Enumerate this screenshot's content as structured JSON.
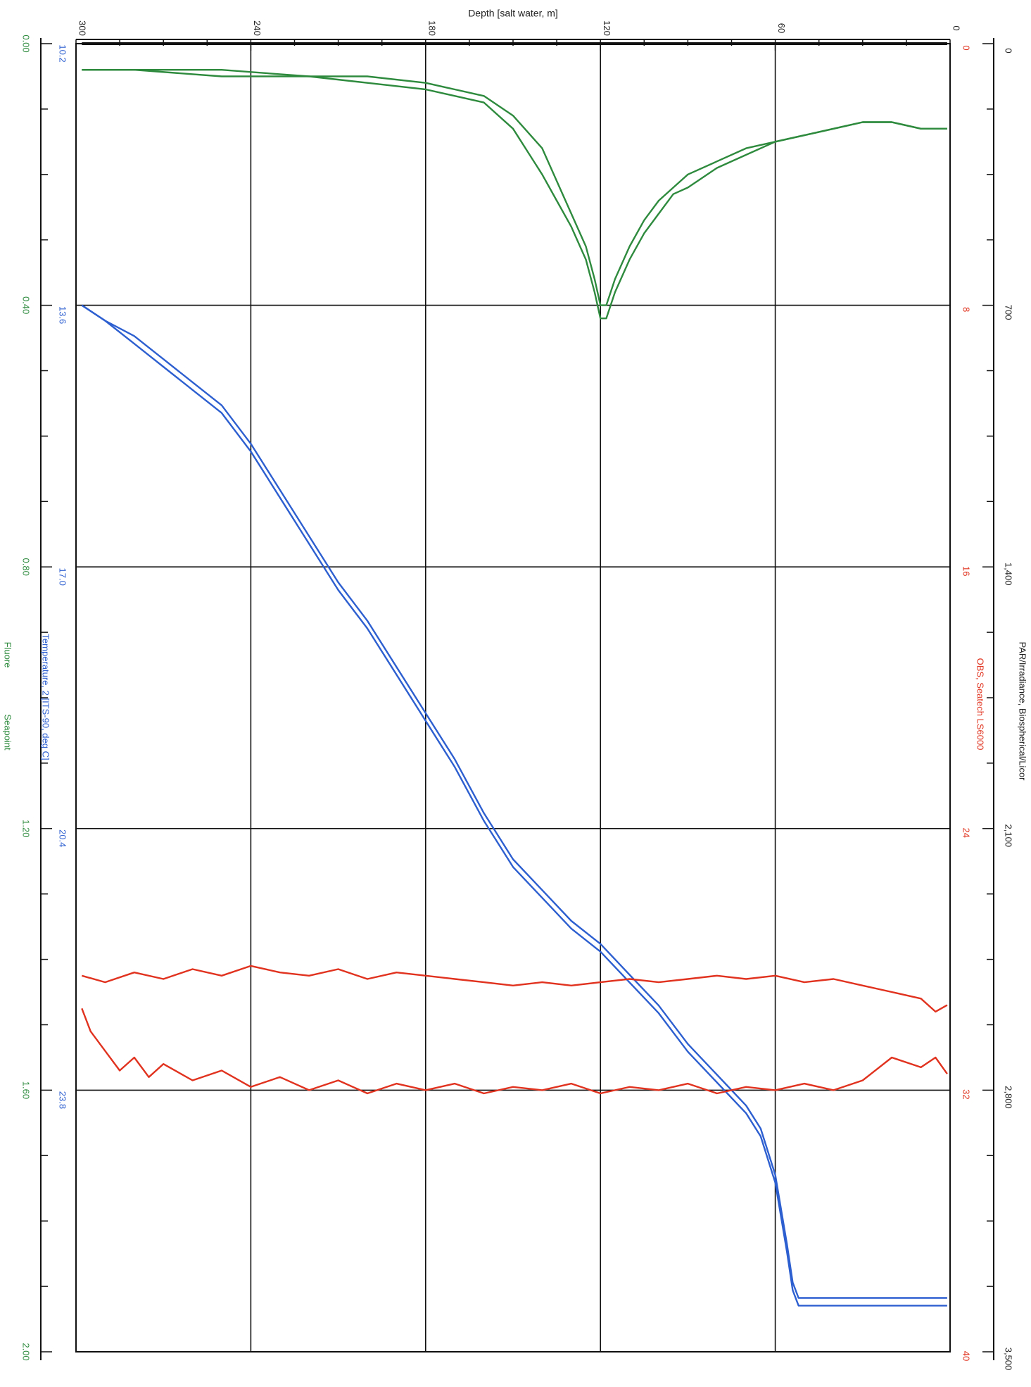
{
  "chart_data": {
    "type": "line",
    "title": "",
    "orientation": "rotated 90 degrees (depth axis along the top, increasing right-to-left; parameter axes along the left and right edges, increasing top-to-bottom)",
    "grid": true,
    "colors": {
      "fluorescence": "#2e8b3e",
      "temperature": "#2d5fd0",
      "obs": "#e0321e",
      "par": "#111111"
    },
    "depth_axis": {
      "label": "Depth [salt water, m]",
      "range": [
        300,
        0
      ],
      "ticks": [
        300,
        240,
        180,
        120,
        60,
        0
      ],
      "tick_labels": [
        "300",
        "240",
        "180",
        "120",
        "60",
        "0"
      ]
    },
    "fluorescence_axis": {
      "label_parts": [
        "Fluore",
        "Seapoint"
      ],
      "range": [
        0.0,
        2.0
      ],
      "ticks": [
        0.0,
        0.4,
        0.8,
        1.2,
        1.6,
        2.0
      ],
      "tick_labels": [
        "0.00",
        "0.40",
        "0.80",
        "1.20",
        "1.60",
        "2.00"
      ]
    },
    "temperature_axis": {
      "label": "Temperature, 2 [ITS-90, deg C]",
      "range": [
        10.2,
        27.2
      ],
      "ticks": [
        10.2,
        13.6,
        17.0,
        20.4,
        23.8
      ],
      "tick_labels": [
        "10.2",
        "13.6",
        "17.0",
        "20.4",
        "23.8"
      ]
    },
    "obs_axis": {
      "label": "OBS, Seatech LS6000",
      "range": [
        0,
        40
      ],
      "ticks": [
        0,
        8,
        16,
        24,
        32,
        40
      ],
      "tick_labels": [
        "0",
        "8",
        "16",
        "24",
        "32",
        "40"
      ]
    },
    "par_axis": {
      "label": "PAR/Irradiance, Biospherical/Licor",
      "range": [
        0,
        3500
      ],
      "ticks": [
        0,
        700,
        1400,
        2100,
        2800,
        3500
      ],
      "tick_labels": [
        "0",
        "700",
        "1,400",
        "2,100",
        "2,800",
        "3,500"
      ]
    },
    "series": [
      {
        "name": "Fluore Seapoint",
        "axis": "fluorescence",
        "depth": [
          298,
          280,
          250,
          220,
          200,
          180,
          160,
          150,
          140,
          135,
          130,
          125,
          122,
          120,
          118,
          115,
          110,
          105,
          100,
          95,
          90,
          80,
          70,
          60,
          50,
          40,
          30,
          20,
          10,
          5,
          1
        ],
        "values": [
          0.04,
          0.04,
          0.05,
          0.05,
          0.06,
          0.07,
          0.09,
          0.13,
          0.2,
          0.24,
          0.28,
          0.33,
          0.38,
          0.42,
          0.42,
          0.38,
          0.33,
          0.29,
          0.26,
          0.23,
          0.22,
          0.19,
          0.17,
          0.15,
          0.14,
          0.13,
          0.12,
          0.12,
          0.13,
          0.13,
          0.13
        ]
      },
      {
        "name": "Fluore Seapoint (upcast)",
        "axis": "fluorescence",
        "depth": [
          298,
          280,
          250,
          220,
          200,
          180,
          170,
          160,
          150,
          140,
          135,
          130,
          125,
          122,
          120,
          118,
          115,
          110,
          105,
          100,
          95,
          90,
          80,
          70,
          60,
          50,
          40,
          30,
          20,
          10,
          5,
          1
        ],
        "values": [
          0.04,
          0.04,
          0.04,
          0.05,
          0.05,
          0.06,
          0.07,
          0.08,
          0.11,
          0.16,
          0.21,
          0.26,
          0.31,
          0.36,
          0.4,
          0.4,
          0.36,
          0.31,
          0.27,
          0.24,
          0.22,
          0.2,
          0.18,
          0.16,
          0.15,
          0.14,
          0.13,
          0.12,
          0.12,
          0.13,
          0.13,
          0.13
        ]
      },
      {
        "name": "Temperature, 2 [ITS-90, deg C]",
        "axis": "temperature",
        "depth": [
          298,
          290,
          280,
          270,
          260,
          250,
          240,
          230,
          220,
          210,
          200,
          190,
          180,
          170,
          160,
          150,
          140,
          130,
          120,
          110,
          100,
          90,
          80,
          70,
          65,
          60,
          56,
          54,
          52,
          50,
          45,
          40,
          30,
          20,
          10,
          5,
          1
        ],
        "values": [
          13.6,
          13.8,
          14.1,
          14.4,
          14.7,
          15.0,
          15.5,
          16.1,
          16.7,
          17.3,
          17.8,
          18.4,
          19.0,
          19.6,
          20.3,
          20.9,
          21.3,
          21.7,
          22.0,
          22.4,
          22.8,
          23.3,
          23.7,
          24.1,
          24.4,
          25.0,
          25.9,
          26.4,
          26.6,
          26.6,
          26.6,
          26.6,
          26.6,
          26.6,
          26.6,
          26.6,
          26.6
        ]
      },
      {
        "name": "Temperature, 2 [ITS-90, deg C] (upcast)",
        "axis": "temperature",
        "depth": [
          298,
          290,
          280,
          270,
          260,
          250,
          240,
          230,
          220,
          210,
          200,
          190,
          180,
          170,
          160,
          150,
          140,
          130,
          120,
          110,
          100,
          90,
          80,
          70,
          65,
          60,
          56,
          54,
          52,
          50,
          45,
          40,
          30,
          20,
          10,
          5,
          1
        ],
        "values": [
          13.6,
          13.8,
          14.0,
          14.3,
          14.6,
          14.9,
          15.4,
          16.0,
          16.6,
          17.2,
          17.7,
          18.3,
          18.9,
          19.5,
          20.2,
          20.8,
          21.2,
          21.6,
          21.9,
          22.3,
          22.7,
          23.2,
          23.6,
          24.0,
          24.3,
          24.9,
          25.8,
          26.3,
          26.5,
          26.5,
          26.5,
          26.5,
          26.5,
          26.5,
          26.5,
          26.5,
          26.5
        ]
      },
      {
        "name": "OBS, Seatech LS6000",
        "axis": "obs",
        "depth": [
          298,
          290,
          280,
          270,
          260,
          250,
          240,
          230,
          220,
          210,
          200,
          190,
          180,
          170,
          160,
          150,
          140,
          130,
          120,
          110,
          100,
          90,
          80,
          70,
          60,
          50,
          40,
          30,
          20,
          10,
          5,
          1
        ],
        "values": [
          28.5,
          28.7,
          28.4,
          28.6,
          28.3,
          28.5,
          28.2,
          28.4,
          28.5,
          28.3,
          28.6,
          28.4,
          28.5,
          28.6,
          28.7,
          28.8,
          28.7,
          28.8,
          28.7,
          28.6,
          28.7,
          28.6,
          28.5,
          28.6,
          28.5,
          28.7,
          28.6,
          28.8,
          29.0,
          29.2,
          29.6,
          29.4
        ]
      },
      {
        "name": "OBS, Seatech LS6000 (upcast)",
        "axis": "obs",
        "depth": [
          298,
          295,
          290,
          285,
          280,
          275,
          270,
          260,
          250,
          240,
          230,
          220,
          210,
          200,
          190,
          180,
          170,
          160,
          150,
          140,
          130,
          120,
          110,
          100,
          90,
          80,
          70,
          60,
          50,
          40,
          30,
          20,
          10,
          5,
          1
        ],
        "values": [
          29.5,
          30.2,
          30.8,
          31.4,
          31.0,
          31.6,
          31.2,
          31.7,
          31.4,
          31.9,
          31.6,
          32.0,
          31.7,
          32.1,
          31.8,
          32.0,
          31.8,
          32.1,
          31.9,
          32.0,
          31.8,
          32.1,
          31.9,
          32.0,
          31.8,
          32.1,
          31.9,
          32.0,
          31.8,
          32.0,
          31.7,
          31.0,
          31.3,
          31.0,
          31.5
        ]
      },
      {
        "name": "PAR/Irradiance, Biospherical/Licor",
        "axis": "par",
        "depth": [
          298,
          250,
          200,
          150,
          100,
          50,
          20,
          10,
          5,
          2,
          1
        ],
        "values": [
          0,
          0,
          0,
          0,
          0,
          0,
          0,
          0,
          0,
          0,
          0
        ]
      }
    ]
  }
}
